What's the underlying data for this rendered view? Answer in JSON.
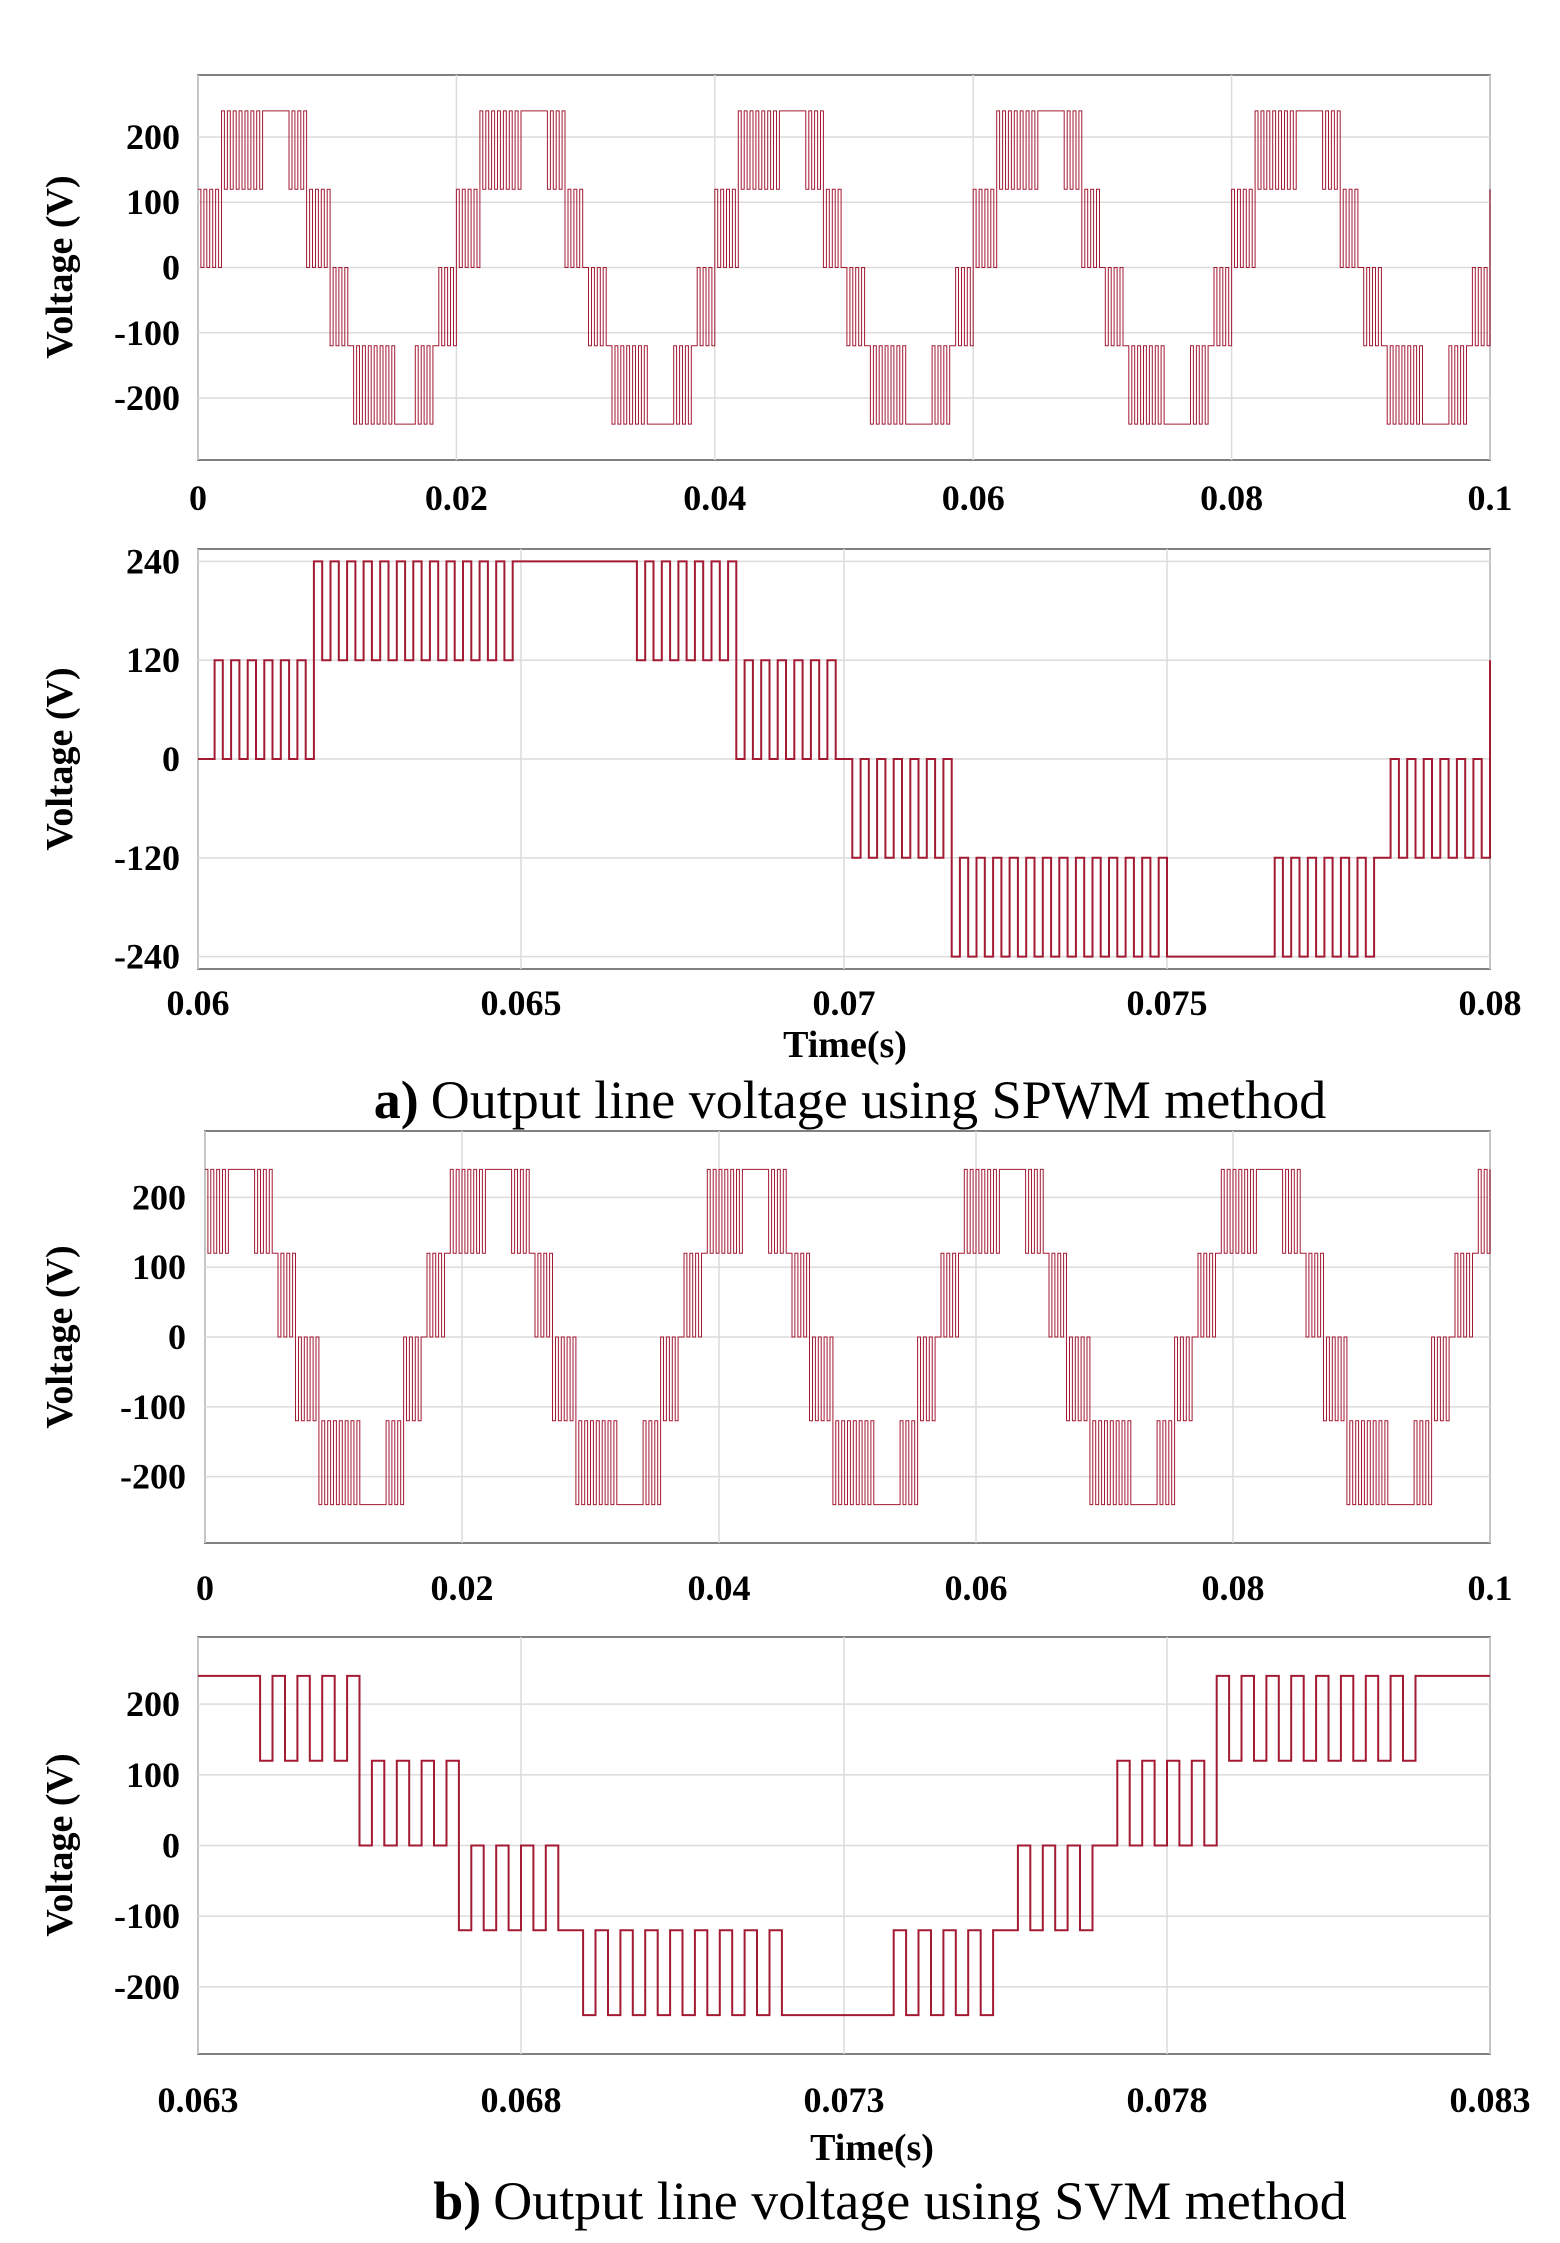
{
  "colors": {
    "signal": "#a31a33",
    "grid": "#dcdcdc",
    "axis": "#808080"
  },
  "captions": [
    {
      "label": "a)",
      "text": "Output line voltage using SPWM method"
    },
    {
      "label": "b)",
      "text": "Output line voltage using SVM method"
    }
  ],
  "chart_data": [
    {
      "id": "spwm-overview",
      "type": "line",
      "method": "SPWM",
      "ylabel": "Voltage (V)",
      "xlabel": "",
      "xlim": [
        0,
        0.1
      ],
      "ylim": [
        -295,
        295
      ],
      "xticks": [
        0,
        0.02,
        0.04,
        0.06,
        0.08,
        0.1
      ],
      "xtick_labels": [
        "0",
        "0.02",
        "0.04",
        "0.06",
        "0.08",
        "0.1"
      ],
      "yticks": [
        200,
        100,
        0,
        -100,
        -200
      ],
      "ytick_labels": [
        "200",
        "100",
        "0",
        "-100",
        "-200"
      ],
      "frequency_hz": 50,
      "phase_s": 0.0,
      "levels": [
        120,
        240
      ],
      "series": [
        {
          "name": "Line voltage"
        }
      ]
    },
    {
      "id": "spwm-zoom",
      "type": "line",
      "method": "SPWM",
      "ylabel": "Voltage (V)",
      "xlabel": "Time(s)",
      "xlim": [
        0.06,
        0.08
      ],
      "ylim": [
        -255,
        255
      ],
      "xticks": [
        0.06,
        0.065,
        0.07,
        0.075,
        0.08
      ],
      "xtick_labels": [
        "0.06",
        "0.065",
        "0.07",
        "0.075",
        "0.08"
      ],
      "yticks": [
        240,
        120,
        0,
        -120,
        -240
      ],
      "ytick_labels": [
        "240",
        "120",
        "0",
        "-120",
        "-240"
      ],
      "frequency_hz": 50,
      "phase_s": 0.0,
      "levels": [
        120,
        240
      ],
      "series": [
        {
          "name": "Line voltage"
        }
      ]
    },
    {
      "id": "svm-overview",
      "type": "line",
      "method": "SVM",
      "ylabel": "Voltage (V)",
      "xlabel": "",
      "xlim": [
        0,
        0.1
      ],
      "ylim": [
        -295,
        295
      ],
      "xticks": [
        0,
        0.02,
        0.04,
        0.06,
        0.08,
        0.1
      ],
      "xtick_labels": [
        "0",
        "0.02",
        "0.04",
        "0.06",
        "0.08",
        "0.1"
      ],
      "yticks": [
        200,
        100,
        0,
        -100,
        -200
      ],
      "ytick_labels": [
        "200",
        "100",
        "0",
        "-100",
        "-200"
      ],
      "frequency_hz": 50,
      "phase_s": -0.003,
      "levels": [
        120,
        240
      ],
      "series": [
        {
          "name": "Line voltage"
        }
      ]
    },
    {
      "id": "svm-zoom",
      "type": "line",
      "method": "SVM",
      "ylabel": "Voltage (V)",
      "xlabel": "Time(s)",
      "xlim": [
        0.063,
        0.083
      ],
      "ylim": [
        -295,
        295
      ],
      "xticks": [
        0.063,
        0.068,
        0.073,
        0.078,
        0.083
      ],
      "xtick_labels": [
        "0.063",
        "0.068",
        "0.073",
        "0.078",
        "0.083"
      ],
      "yticks": [
        200,
        100,
        0,
        -100,
        -200
      ],
      "ytick_labels": [
        "200",
        "100",
        "0",
        "-100",
        "-200"
      ],
      "frequency_hz": 50,
      "phase_s": -0.003,
      "levels": [
        120,
        240
      ],
      "series": [
        {
          "name": "Line voltage"
        }
      ]
    }
  ]
}
